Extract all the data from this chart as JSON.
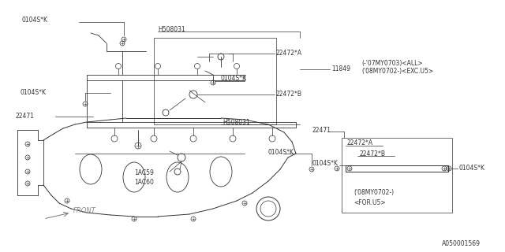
{
  "background_color": "#ffffff",
  "watermark": "A050001569",
  "front_label": "FRONT",
  "labels": {
    "0104SK_top": "0104S*K",
    "H508031_top": "H508031",
    "22472A_top": "22472*A",
    "11849": "11849",
    "note1": "(-'07MY0703)<ALL>",
    "note2": "('08MY0702-)<EXC.U5>",
    "0104SK_mid1": "0104S*K",
    "0104SK_mid2": "0104S*K",
    "22472B_top": "22472*B",
    "22471_left": "22471",
    "H508031_bot": "H508031",
    "22471_right": "22471",
    "22472A_right": "22472*A",
    "22472B_right": "22472*B",
    "0104SK_right1": "0104S*K",
    "0104SK_right2": "0104S*K",
    "note3": "('08MY0702-)",
    "note4": "<FOR.U5>",
    "1AC59": "1AC59",
    "1AC60": "1AC60"
  },
  "line_color": "#333333",
  "text_color": "#333333",
  "fs": 6.0,
  "fs_small": 5.5
}
